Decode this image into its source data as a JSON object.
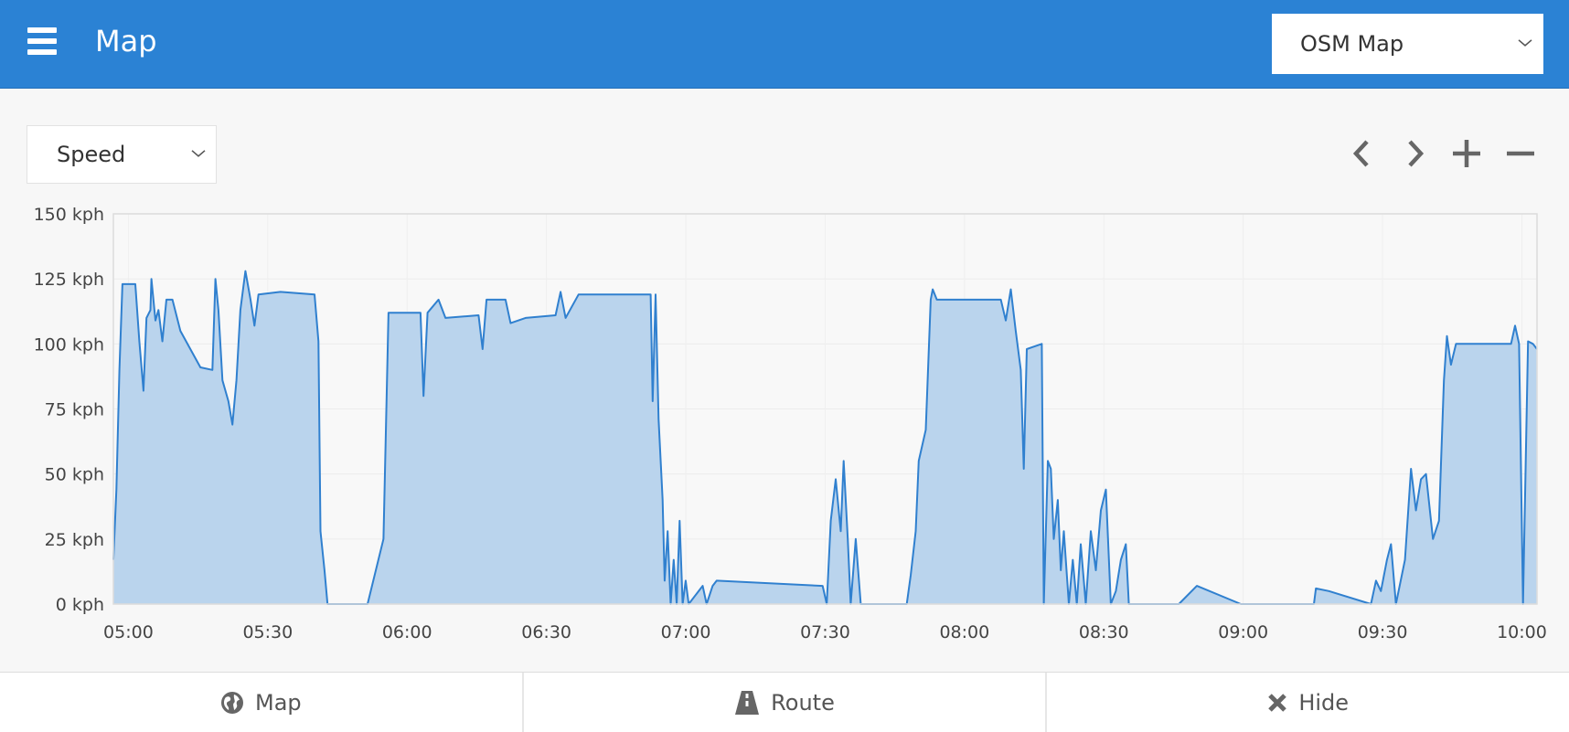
{
  "header": {
    "title": "Map",
    "map_select": "OSM Map"
  },
  "toolbar": {
    "metric_select": "Speed",
    "icons": [
      "chevron-left-icon",
      "chevron-right-icon",
      "plus-icon",
      "minus-icon"
    ]
  },
  "colors": {
    "header": "#2b82d4",
    "line": "#3080cf",
    "fill": "#bad4ed"
  },
  "bottom": {
    "map_label": "Map",
    "route_label": "Route",
    "hide_label": "Hide"
  },
  "chart_data": {
    "type": "area",
    "xlabel": "",
    "ylabel": "",
    "ylim": [
      0,
      150
    ],
    "xlim": [
      "04:56:46",
      "10:03:15"
    ],
    "y_ticks": [
      "0 kph",
      "25 kph",
      "50 kph",
      "75 kph",
      "100 kph",
      "125 kph",
      "150 kph"
    ],
    "x_ticks": [
      "05:00",
      "05:30",
      "06:00",
      "06:30",
      "07:00",
      "07:30",
      "08:00",
      "08:30",
      "09:00",
      "09:30",
      "10:00"
    ],
    "grid": true,
    "unit": "kph",
    "points": [
      [
        "04:56:46",
        17
      ],
      [
        "04:57:25",
        44
      ],
      [
        "04:58:04",
        90
      ],
      [
        "04:58:43",
        123
      ],
      [
        "04:59:08",
        123
      ],
      [
        "05:01:30",
        123
      ],
      [
        "05:02:22",
        101
      ],
      [
        "05:03:14",
        82
      ],
      [
        "05:03:53",
        110
      ],
      [
        "05:04:44",
        113
      ],
      [
        "05:04:57",
        125
      ],
      [
        "05:05:49",
        109
      ],
      [
        "05:06:28",
        113
      ],
      [
        "05:07:19",
        101
      ],
      [
        "05:08:11",
        117
      ],
      [
        "05:09:29",
        117
      ],
      [
        "05:11:12",
        105
      ],
      [
        "05:13:21",
        98
      ],
      [
        "05:15:30",
        91
      ],
      [
        "05:18:05",
        90
      ],
      [
        "05:18:44",
        125
      ],
      [
        "05:19:23",
        113
      ],
      [
        "05:20:15",
        86
      ],
      [
        "05:21:32",
        78
      ],
      [
        "05:22:24",
        69
      ],
      [
        "05:23:16",
        86
      ],
      [
        "05:24:07",
        113
      ],
      [
        "05:25:12",
        128
      ],
      [
        "05:26:17",
        117
      ],
      [
        "05:27:08",
        107
      ],
      [
        "05:28:00",
        119
      ],
      [
        "05:32:44",
        120
      ],
      [
        "05:40:04",
        119
      ],
      [
        "05:40:55",
        101
      ],
      [
        "05:41:21",
        28
      ],
      [
        "05:42:13",
        13
      ],
      [
        "05:42:52",
        0
      ],
      [
        "05:51:29",
        0
      ],
      [
        "05:54:55",
        25
      ],
      [
        "05:56:00",
        112
      ],
      [
        "06:02:53",
        112
      ],
      [
        "06:03:32",
        80
      ],
      [
        "06:04:24",
        112
      ],
      [
        "06:06:46",
        117
      ],
      [
        "06:08:16",
        110
      ],
      [
        "06:15:23",
        111
      ],
      [
        "06:16:15",
        98
      ],
      [
        "06:17:06",
        117
      ],
      [
        "06:21:12",
        117
      ],
      [
        "06:22:16",
        108
      ],
      [
        "06:25:30",
        110
      ],
      [
        "06:31:58",
        111
      ],
      [
        "06:33:03",
        120
      ],
      [
        "06:34:07",
        110
      ],
      [
        "06:36:55",
        119
      ],
      [
        "06:52:26",
        119
      ],
      [
        "06:52:52",
        78
      ],
      [
        "06:53:30",
        119
      ],
      [
        "06:54:09",
        71
      ],
      [
        "06:55:01",
        40
      ],
      [
        "06:55:26",
        9
      ],
      [
        "06:56:05",
        28
      ],
      [
        "06:56:44",
        0
      ],
      [
        "06:57:23",
        17
      ],
      [
        "06:58:02",
        0
      ],
      [
        "06:58:40",
        32
      ],
      [
        "06:59:19",
        0
      ],
      [
        "06:59:58",
        9
      ],
      [
        "07:00:37",
        0
      ],
      [
        "07:03:38",
        7
      ],
      [
        "07:04:29",
        0
      ],
      [
        "07:05:47",
        7
      ],
      [
        "07:06:38",
        9
      ],
      [
        "07:29:28",
        7
      ],
      [
        "07:30:20",
        0
      ],
      [
        "07:31:12",
        32
      ],
      [
        "07:32:16",
        48
      ],
      [
        "07:33:21",
        28
      ],
      [
        "07:33:59",
        55
      ],
      [
        "07:34:52",
        25
      ],
      [
        "07:35:30",
        0
      ],
      [
        "07:36:35",
        25
      ],
      [
        "07:37:40",
        0
      ],
      [
        "07:47:34",
        0
      ],
      [
        "07:48:25",
        11
      ],
      [
        "07:49:30",
        28
      ],
      [
        "07:50:09",
        55
      ],
      [
        "07:51:40",
        67
      ],
      [
        "07:52:44",
        117
      ],
      [
        "07:53:10",
        121
      ],
      [
        "07:54:02",
        117
      ],
      [
        "08:07:49",
        117
      ],
      [
        "08:08:53",
        109
      ],
      [
        "08:09:58",
        121
      ],
      [
        "08:11:02",
        105
      ],
      [
        "08:12:07",
        90
      ],
      [
        "08:12:46",
        52
      ],
      [
        "08:13:25",
        98
      ],
      [
        "08:16:38",
        100
      ],
      [
        "08:17:04",
        0
      ],
      [
        "08:17:56",
        55
      ],
      [
        "08:18:35",
        52
      ],
      [
        "08:19:13",
        25
      ],
      [
        "08:20:05",
        40
      ],
      [
        "08:20:44",
        13
      ],
      [
        "08:21:23",
        28
      ],
      [
        "08:22:28",
        0
      ],
      [
        "08:23:19",
        17
      ],
      [
        "08:24:11",
        0
      ],
      [
        "08:25:02",
        23
      ],
      [
        "08:26:07",
        0
      ],
      [
        "08:27:11",
        28
      ],
      [
        "08:28:16",
        13
      ],
      [
        "08:29:21",
        36
      ],
      [
        "08:30:26",
        44
      ],
      [
        "08:31:30",
        0
      ],
      [
        "08:32:35",
        5
      ],
      [
        "08:33:40",
        17
      ],
      [
        "08:34:44",
        23
      ],
      [
        "08:35:23",
        0
      ],
      [
        "08:46:09",
        0
      ],
      [
        "08:50:01",
        7
      ],
      [
        "08:59:30",
        0
      ],
      [
        "09:15:13",
        0
      ],
      [
        "09:15:39",
        6
      ],
      [
        "09:18:27",
        5
      ],
      [
        "09:27:30",
        0
      ],
      [
        "09:28:35",
        9
      ],
      [
        "09:29:39",
        5
      ],
      [
        "09:30:57",
        17
      ],
      [
        "09:31:49",
        23
      ],
      [
        "09:32:53",
        0
      ],
      [
        "09:34:49",
        17
      ],
      [
        "09:36:07",
        52
      ],
      [
        "09:37:11",
        36
      ],
      [
        "09:38:16",
        48
      ],
      [
        "09:39:21",
        50
      ],
      [
        "09:40:51",
        25
      ],
      [
        "09:42:09",
        32
      ],
      [
        "09:43:13",
        86
      ],
      [
        "09:43:52",
        103
      ],
      [
        "09:44:44",
        92
      ],
      [
        "09:45:48",
        100
      ],
      [
        "09:47:19",
        100
      ],
      [
        "09:57:39",
        100
      ],
      [
        "09:58:31",
        107
      ],
      [
        "09:59:23",
        100
      ],
      [
        "10:00:14",
        0
      ],
      [
        "10:01:19",
        101
      ],
      [
        "10:02:23",
        100
      ],
      [
        "10:03:15",
        98
      ]
    ]
  }
}
